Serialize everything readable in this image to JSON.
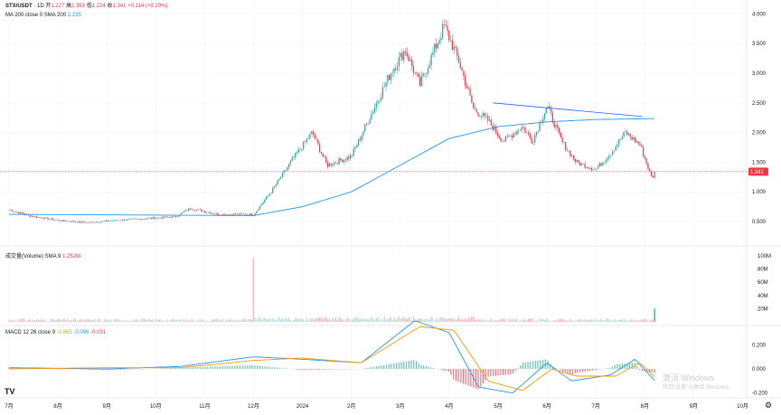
{
  "header": {
    "symbol": "STX/USDT",
    "interval": "1D",
    "o_label": "开",
    "open": "1.227",
    "h_label": "高",
    "high": "1.353",
    "l_label": "低",
    "low": "1.224",
    "c_label": "收",
    "close": "1.341",
    "change": "+0.114 (+9.29%)"
  },
  "ma_legend": {
    "label": "MA 200 close 0 SMA 200",
    "value": "2.235"
  },
  "volume_legend": {
    "label": "成交量(Volume) SMA 9",
    "value": "1.252M"
  },
  "macd_legend": {
    "label": "MACD 12 26 close 9",
    "v1": "-0.065",
    "v2": "-0.096",
    "v3": "-0.031"
  },
  "price_axis": [
    "4.000",
    "3.500",
    "3.000",
    "2.500",
    "2.000",
    "1.500",
    "1.000",
    "0.500"
  ],
  "volume_axis": [
    "100M",
    "80M",
    "60M",
    "40M",
    "20M"
  ],
  "macd_axis": [
    "0.200",
    "0.000",
    "-0.200"
  ],
  "last_price_label": "1.341",
  "time_axis": [
    "7月",
    "8月",
    "9月",
    "10月",
    "11月",
    "12月",
    "2024",
    "2月",
    "3月",
    "4月",
    "5月",
    "6月",
    "7月",
    "8月",
    "9月",
    "10月"
  ],
  "watermark": {
    "line1": "激活 Windows",
    "line2": "转到\"设置\"以激活 Windows。"
  },
  "logo_text": "TV",
  "colors": {
    "up": "#26a69a",
    "down": "#f23645",
    "ma": "#2196f3",
    "trend": "#2962ff",
    "signal": "#ff9800",
    "grid": "#f0f3fa"
  },
  "chart_data": {
    "type": "candlestick",
    "x_ticks": [
      "7月",
      "8月",
      "9月",
      "10月",
      "11月",
      "12月",
      "2024",
      "2月",
      "3月",
      "4月",
      "5月",
      "6月",
      "7月",
      "8月",
      "9月",
      "10月"
    ],
    "y_range": [
      0.3,
      4.2
    ],
    "close_path": {
      "months": [
        "7月",
        "8月",
        "9月",
        "10月",
        "11月",
        "12月",
        "2024",
        "2月",
        "3月",
        "4月",
        "5月",
        "6月",
        "7月",
        "8月"
      ],
      "values": [
        0.68,
        0.6,
        0.52,
        0.53,
        0.62,
        0.8,
        1.7,
        1.6,
        3.0,
        3.7,
        2.1,
        2.2,
        1.5,
        1.75
      ]
    },
    "price_anchors": [
      {
        "t": 0,
        "p": 0.7
      },
      {
        "t": 0.4,
        "p": 0.6
      },
      {
        "t": 1.0,
        "p": 0.52
      },
      {
        "t": 1.6,
        "p": 0.48
      },
      {
        "t": 2.2,
        "p": 0.52
      },
      {
        "t": 2.8,
        "p": 0.55
      },
      {
        "t": 3.4,
        "p": 0.58
      },
      {
        "t": 3.7,
        "p": 0.72
      },
      {
        "t": 4.3,
        "p": 0.62
      },
      {
        "t": 5.0,
        "p": 0.62
      },
      {
        "t": 5.4,
        "p": 1.05
      },
      {
        "t": 5.8,
        "p": 1.55
      },
      {
        "t": 6.2,
        "p": 2.0
      },
      {
        "t": 6.5,
        "p": 1.45
      },
      {
        "t": 7.0,
        "p": 1.6
      },
      {
        "t": 7.4,
        "p": 2.3
      },
      {
        "t": 7.8,
        "p": 3.0
      },
      {
        "t": 8.1,
        "p": 3.4
      },
      {
        "t": 8.4,
        "p": 2.8
      },
      {
        "t": 8.9,
        "p": 3.8
      },
      {
        "t": 9.2,
        "p": 3.2
      },
      {
        "t": 9.5,
        "p": 2.4
      },
      {
        "t": 9.8,
        "p": 2.2
      },
      {
        "t": 10.1,
        "p": 1.85
      },
      {
        "t": 10.5,
        "p": 2.1
      },
      {
        "t": 10.7,
        "p": 1.85
      },
      {
        "t": 11.0,
        "p": 2.45
      },
      {
        "t": 11.3,
        "p": 1.85
      },
      {
        "t": 11.6,
        "p": 1.5
      },
      {
        "t": 12.0,
        "p": 1.38
      },
      {
        "t": 12.3,
        "p": 1.65
      },
      {
        "t": 12.6,
        "p": 2.0
      },
      {
        "t": 12.9,
        "p": 1.8
      },
      {
        "t": 13.15,
        "p": 1.22
      },
      {
        "t": 13.2,
        "p": 1.341
      }
    ],
    "ma200": {
      "name": "MA 200",
      "points": [
        [
          5.0,
          0.6
        ],
        [
          6.0,
          0.75
        ],
        [
          7.0,
          1.0
        ],
        [
          8.0,
          1.45
        ],
        [
          9.0,
          1.9
        ],
        [
          10.0,
          2.1
        ],
        [
          11.0,
          2.18
        ],
        [
          12.0,
          2.22
        ],
        [
          13.2,
          2.235
        ]
      ]
    },
    "trendline": {
      "points": [
        [
          9.9,
          2.5
        ],
        [
          12.95,
          2.27
        ]
      ]
    },
    "horizontal_line": {
      "value": 1.341
    },
    "volume": {
      "ylim": [
        0,
        100
      ],
      "unit": "M",
      "spike": {
        "t": 5.0,
        "value": 97
      },
      "last": {
        "t": 13.2,
        "value": 20
      }
    },
    "macd": {
      "ylim": [
        -0.25,
        0.45
      ],
      "macd_points": [
        [
          0,
          0.01
        ],
        [
          2,
          0.0
        ],
        [
          3.5,
          0.02
        ],
        [
          5,
          0.1
        ],
        [
          6,
          0.08
        ],
        [
          7.2,
          0.05
        ],
        [
          8.3,
          0.4
        ],
        [
          9.0,
          0.3
        ],
        [
          9.6,
          -0.15
        ],
        [
          10.3,
          -0.2
        ],
        [
          11.0,
          0.05
        ],
        [
          11.5,
          -0.1
        ],
        [
          12.3,
          -0.05
        ],
        [
          12.8,
          0.08
        ],
        [
          13.2,
          -0.096
        ]
      ],
      "signal_points": [
        [
          0,
          0.0
        ],
        [
          2,
          0.01
        ],
        [
          3.5,
          0.01
        ],
        [
          5,
          0.07
        ],
        [
          6,
          0.09
        ],
        [
          7.2,
          0.05
        ],
        [
          8.4,
          0.35
        ],
        [
          9.1,
          0.32
        ],
        [
          9.8,
          -0.1
        ],
        [
          10.5,
          -0.18
        ],
        [
          11.1,
          0.0
        ],
        [
          11.6,
          -0.06
        ],
        [
          12.4,
          -0.06
        ],
        [
          12.9,
          0.05
        ],
        [
          13.2,
          -0.065
        ]
      ]
    }
  }
}
